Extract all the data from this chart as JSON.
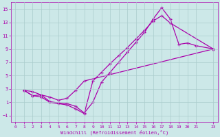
{
  "xlabel": "Windchill (Refroidissement éolien,°C)",
  "bg_color": "#cce8e8",
  "grid_color": "#aacccc",
  "line_color": "#aa00aa",
  "xlim": [
    -0.5,
    23.5
  ],
  "ylim": [
    -2.0,
    16.0
  ],
  "xticks": [
    0,
    1,
    2,
    3,
    4,
    5,
    6,
    7,
    8,
    9,
    10,
    11,
    12,
    13,
    14,
    15,
    16,
    17,
    18,
    19,
    20,
    21,
    23
  ],
  "yticks": [
    -1,
    1,
    3,
    5,
    7,
    9,
    11,
    13,
    15
  ],
  "line1_x": [
    1,
    2,
    3,
    4,
    5,
    6,
    7,
    8,
    9,
    10,
    11,
    12,
    13,
    14,
    15,
    16,
    17,
    18,
    23
  ],
  "line1_y": [
    2.8,
    2.0,
    1.8,
    1.0,
    0.8,
    0.6,
    0.0,
    -0.7,
    4.2,
    5.5,
    6.8,
    8.0,
    9.2,
    10.5,
    11.8,
    13.2,
    14.0,
    12.9,
    9.0
  ],
  "line2_x": [
    1,
    2,
    3,
    4,
    5,
    6,
    7,
    8,
    9,
    10,
    11,
    12,
    13,
    14,
    15,
    16,
    17,
    18,
    19,
    20,
    21,
    23
  ],
  "line2_y": [
    2.8,
    2.6,
    2.1,
    1.1,
    0.9,
    0.8,
    0.4,
    -0.6,
    1.0,
    4.0,
    5.5,
    7.0,
    8.5,
    10.0,
    11.5,
    13.5,
    15.2,
    13.5,
    9.7,
    9.9,
    9.5,
    9.0
  ],
  "line3_x": [
    1,
    2,
    3,
    4,
    5,
    6,
    7,
    8,
    23
  ],
  "line3_y": [
    2.8,
    2.0,
    2.1,
    1.8,
    1.3,
    1.6,
    2.8,
    4.2,
    9.0
  ]
}
